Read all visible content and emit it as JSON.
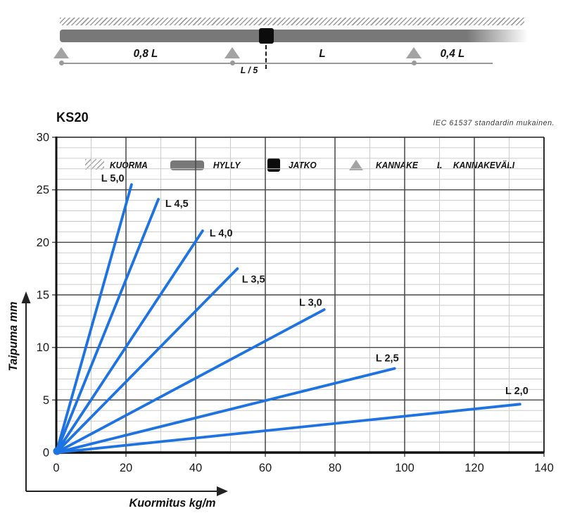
{
  "diagram": {
    "span_labels": {
      "left": "0,8 L",
      "mid": "L",
      "right": "0,4 L",
      "joint_offset": "L / 5"
    }
  },
  "legend": {
    "items": [
      {
        "icon": "load-hatch-icon",
        "label": "KUORMA"
      },
      {
        "icon": "shelf-bar-icon",
        "label": "HYLLY"
      },
      {
        "icon": "joint-square-icon",
        "label": "JATKO"
      },
      {
        "icon": "support-triangle-icon",
        "label": "KANNAKE"
      },
      {
        "icon": "letter-l-symbol",
        "symbol": "L",
        "label": "KANNAKEVÄLI"
      }
    ]
  },
  "chart": {
    "title": "KS20",
    "note": "IEC 61537 standardin mukainen."
  },
  "chart_data": {
    "type": "line",
    "title": "KS20",
    "xlabel": "Kuormitus kg/m",
    "ylabel": "Taipuma mm",
    "xlim": [
      0,
      140
    ],
    "ylim": [
      0,
      30
    ],
    "x_ticks": [
      0,
      20,
      40,
      60,
      80,
      100,
      120,
      140
    ],
    "y_ticks": [
      0,
      5,
      10,
      15,
      20,
      25,
      30
    ],
    "x_minor_step": 10,
    "y_minor_step": 1,
    "grid": true,
    "legend_position": "none",
    "colors": {
      "line": "#1e73e2",
      "grid_minor": "#cccccc",
      "grid_major": "#474747",
      "axis": "#111111",
      "text": "#1a1a1a"
    },
    "series": [
      {
        "name": "L 5,0",
        "points": [
          [
            0,
            0
          ],
          [
            21.6,
            25.5
          ]
        ],
        "label_at": [
          16.2,
          26.1
        ]
      },
      {
        "name": "L 4,5",
        "points": [
          [
            0,
            0
          ],
          [
            29.3,
            24.1
          ]
        ],
        "label_at": [
          34.6,
          23.7
        ]
      },
      {
        "name": "L 4,0",
        "points": [
          [
            0,
            0
          ],
          [
            42.0,
            21.1
          ]
        ],
        "label_at": [
          47.3,
          20.9
        ]
      },
      {
        "name": "L 3,5",
        "points": [
          [
            0,
            0
          ],
          [
            52.0,
            17.5
          ]
        ],
        "label_at": [
          56.6,
          16.5
        ]
      },
      {
        "name": "L 3,0",
        "points": [
          [
            0,
            0
          ],
          [
            76.9,
            13.6
          ]
        ],
        "label_at": [
          73.0,
          14.3
        ]
      },
      {
        "name": "L 2,5",
        "points": [
          [
            0,
            0
          ],
          [
            97.1,
            8.0
          ]
        ],
        "label_at": [
          95.0,
          9.0
        ]
      },
      {
        "name": "L 2,0",
        "points": [
          [
            0,
            0
          ],
          [
            133.1,
            4.6
          ]
        ],
        "label_at": [
          132.2,
          5.9
        ]
      }
    ]
  }
}
